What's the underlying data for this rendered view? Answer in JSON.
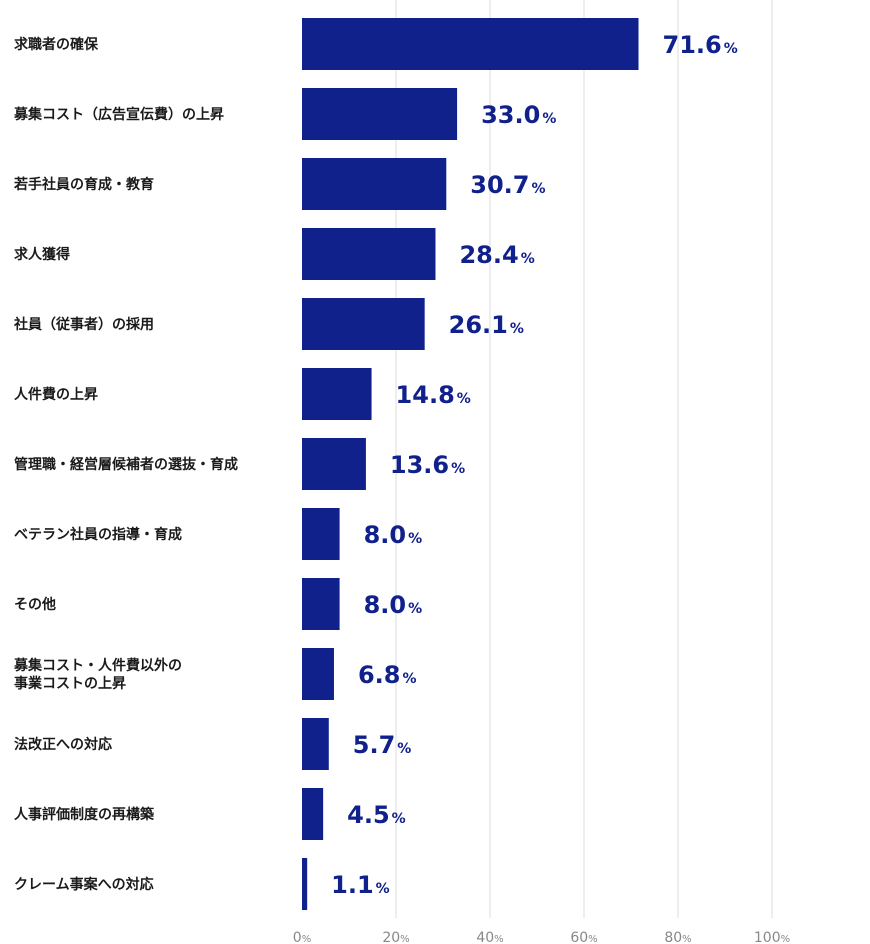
{
  "chart_data": {
    "type": "bar",
    "orientation": "horizontal",
    "categories": [
      [
        "求職者の確保"
      ],
      [
        "募集コスト（広告宣伝費）の上昇"
      ],
      [
        "若手社員の育成・教育"
      ],
      [
        "求人獲得"
      ],
      [
        "社員（従事者）の採用"
      ],
      [
        "人件費の上昇"
      ],
      [
        "管理職・経営層候補者の選抜・育成"
      ],
      [
        "ベテラン社員の指導・育成"
      ],
      [
        "その他"
      ],
      [
        "募集コスト・人件費以外の",
        "事業コストの上昇"
      ],
      [
        "法改正への対応"
      ],
      [
        "人事評価制度の再構築"
      ],
      [
        "クレーム事案への対応"
      ]
    ],
    "values": [
      71.6,
      33.0,
      30.7,
      28.4,
      26.1,
      14.8,
      13.6,
      8.0,
      8.0,
      6.8,
      5.7,
      4.5,
      1.1
    ],
    "value_labels": [
      "71.6",
      "33.0",
      "30.7",
      "28.4",
      "26.1",
      "14.8",
      "13.6",
      "8.0",
      "8.0",
      "6.8",
      "5.7",
      "4.5",
      "1.1"
    ],
    "unit": "%",
    "xlim": [
      0,
      100
    ],
    "x_ticks": [
      0,
      20,
      40,
      60,
      80,
      100
    ],
    "grid": true,
    "bar_color": "#10218b",
    "grid_color": "#dddddd"
  }
}
